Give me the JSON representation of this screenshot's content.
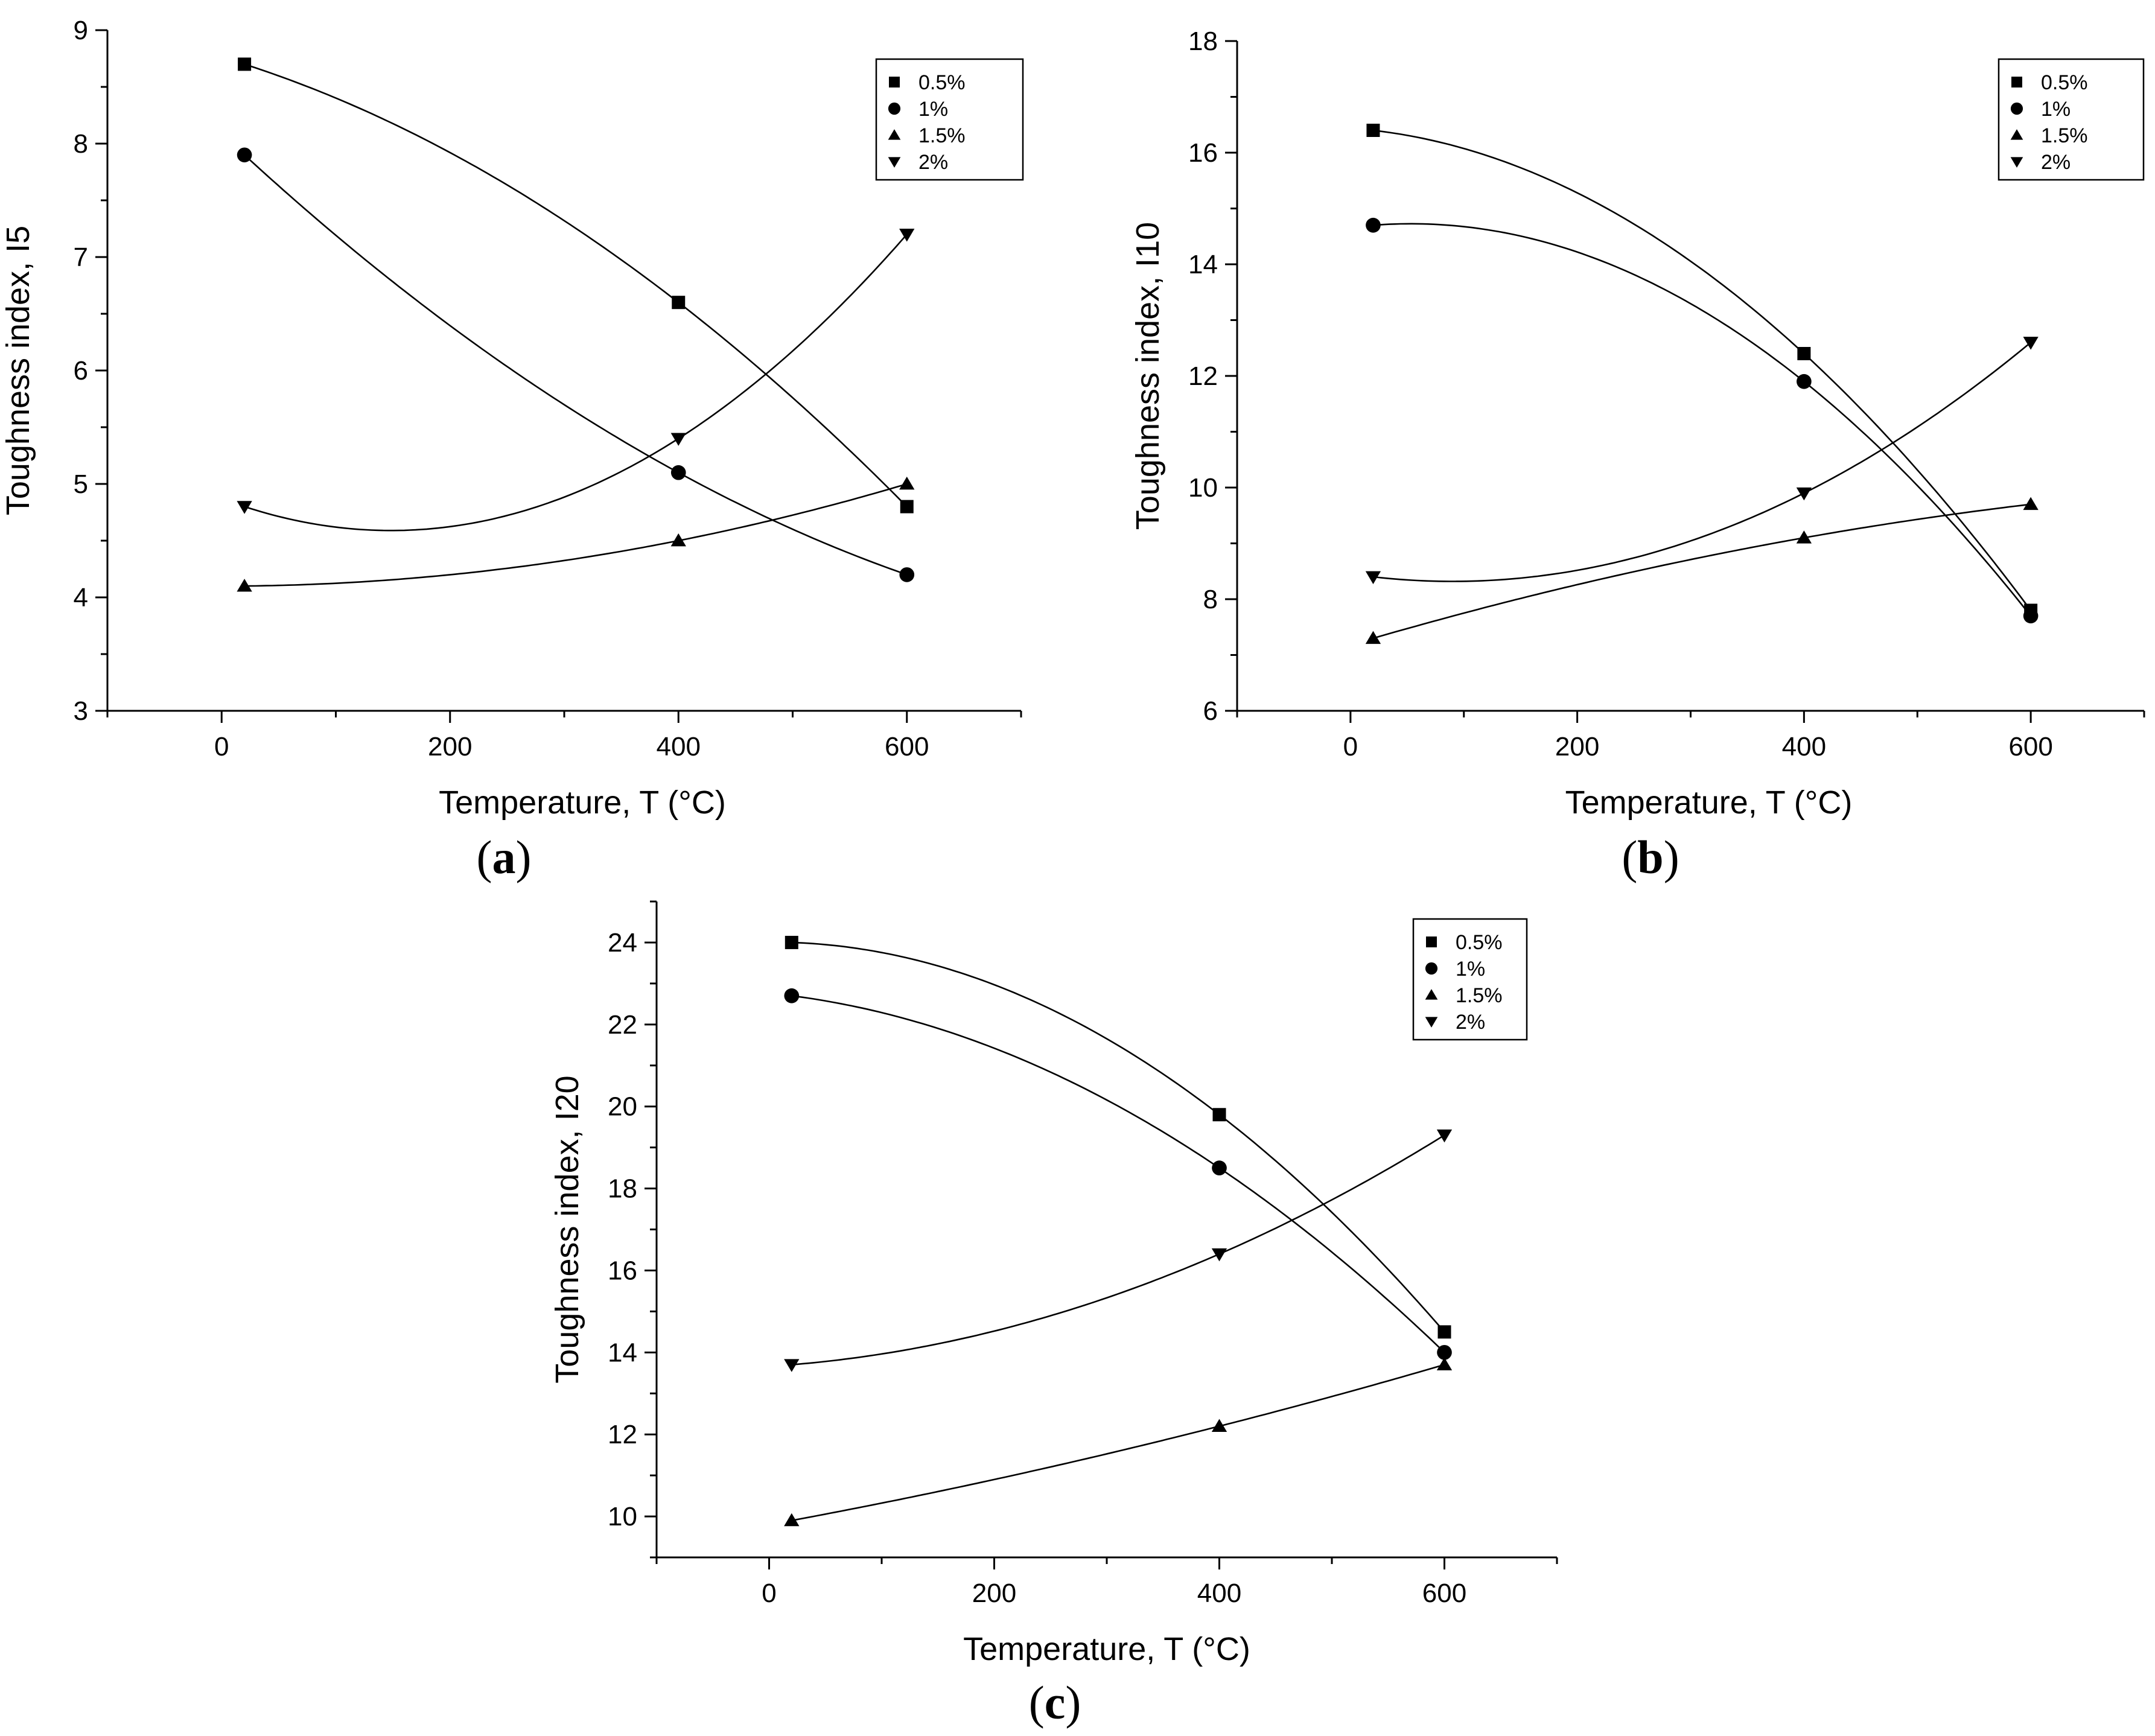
{
  "figure": {
    "panels": [
      "a",
      "b",
      "c"
    ]
  },
  "chart_data": [
    {
      "panel_label": "(a)",
      "panel_letter": "a",
      "type": "line",
      "title": "",
      "xlabel": "Temperature, T (°C)",
      "ylabel": "Toughness index, I5",
      "xlim": [
        -100,
        700
      ],
      "ylim": [
        3,
        9
      ],
      "xticks": [
        0,
        200,
        400,
        600
      ],
      "yticks": [
        3,
        4,
        5,
        6,
        7,
        8,
        9
      ],
      "x": [
        20,
        400,
        600
      ],
      "series": [
        {
          "name": "0.5%",
          "marker": "square",
          "values": [
            8.7,
            6.6,
            4.8
          ]
        },
        {
          "name": "1%",
          "marker": "circle",
          "values": [
            7.9,
            5.1,
            4.2
          ]
        },
        {
          "name": "1.5%",
          "marker": "triangle-up",
          "values": [
            4.1,
            4.5,
            5.0
          ]
        },
        {
          "name": "2%",
          "marker": "triangle-down",
          "values": [
            4.8,
            5.4,
            7.2
          ]
        }
      ],
      "legend_position": "top-right"
    },
    {
      "panel_label": "(b)",
      "panel_letter": "b",
      "type": "line",
      "title": "",
      "xlabel": "Temperature, T (°C)",
      "ylabel": "Toughness index, I10",
      "xlim": [
        -100,
        700
      ],
      "ylim": [
        6,
        18
      ],
      "xticks": [
        0,
        200,
        400,
        600
      ],
      "yticks": [
        6,
        8,
        10,
        12,
        14,
        16,
        18
      ],
      "x": [
        20,
        400,
        600
      ],
      "series": [
        {
          "name": "0.5%",
          "marker": "square",
          "values": [
            16.4,
            12.4,
            7.8
          ]
        },
        {
          "name": "1%",
          "marker": "circle",
          "values": [
            14.7,
            11.9,
            7.7
          ]
        },
        {
          "name": "1.5%",
          "marker": "triangle-up",
          "values": [
            7.3,
            9.1,
            9.7
          ]
        },
        {
          "name": "2%",
          "marker": "triangle-down",
          "values": [
            8.4,
            9.9,
            12.6
          ]
        }
      ],
      "legend_position": "top-right"
    },
    {
      "panel_label": "(c)",
      "panel_letter": "c",
      "type": "line",
      "title": "",
      "xlabel": "Temperature, T (°C)",
      "ylabel": "Toughness index, I20",
      "xlim": [
        -100,
        700
      ],
      "ylim": [
        9,
        25
      ],
      "xticks": [
        0,
        200,
        400,
        600
      ],
      "yticks": [
        10,
        12,
        14,
        16,
        18,
        20,
        22,
        24
      ],
      "x": [
        20,
        400,
        600
      ],
      "series": [
        {
          "name": "0.5%",
          "marker": "square",
          "values": [
            24.0,
            19.8,
            14.5
          ]
        },
        {
          "name": "1%",
          "marker": "circle",
          "values": [
            22.7,
            18.5,
            14.0
          ]
        },
        {
          "name": "1.5%",
          "marker": "triangle-up",
          "values": [
            9.9,
            12.2,
            13.7
          ]
        },
        {
          "name": "2%",
          "marker": "triangle-down",
          "values": [
            13.7,
            16.4,
            19.3
          ]
        }
      ],
      "legend_position": "top-right"
    }
  ]
}
